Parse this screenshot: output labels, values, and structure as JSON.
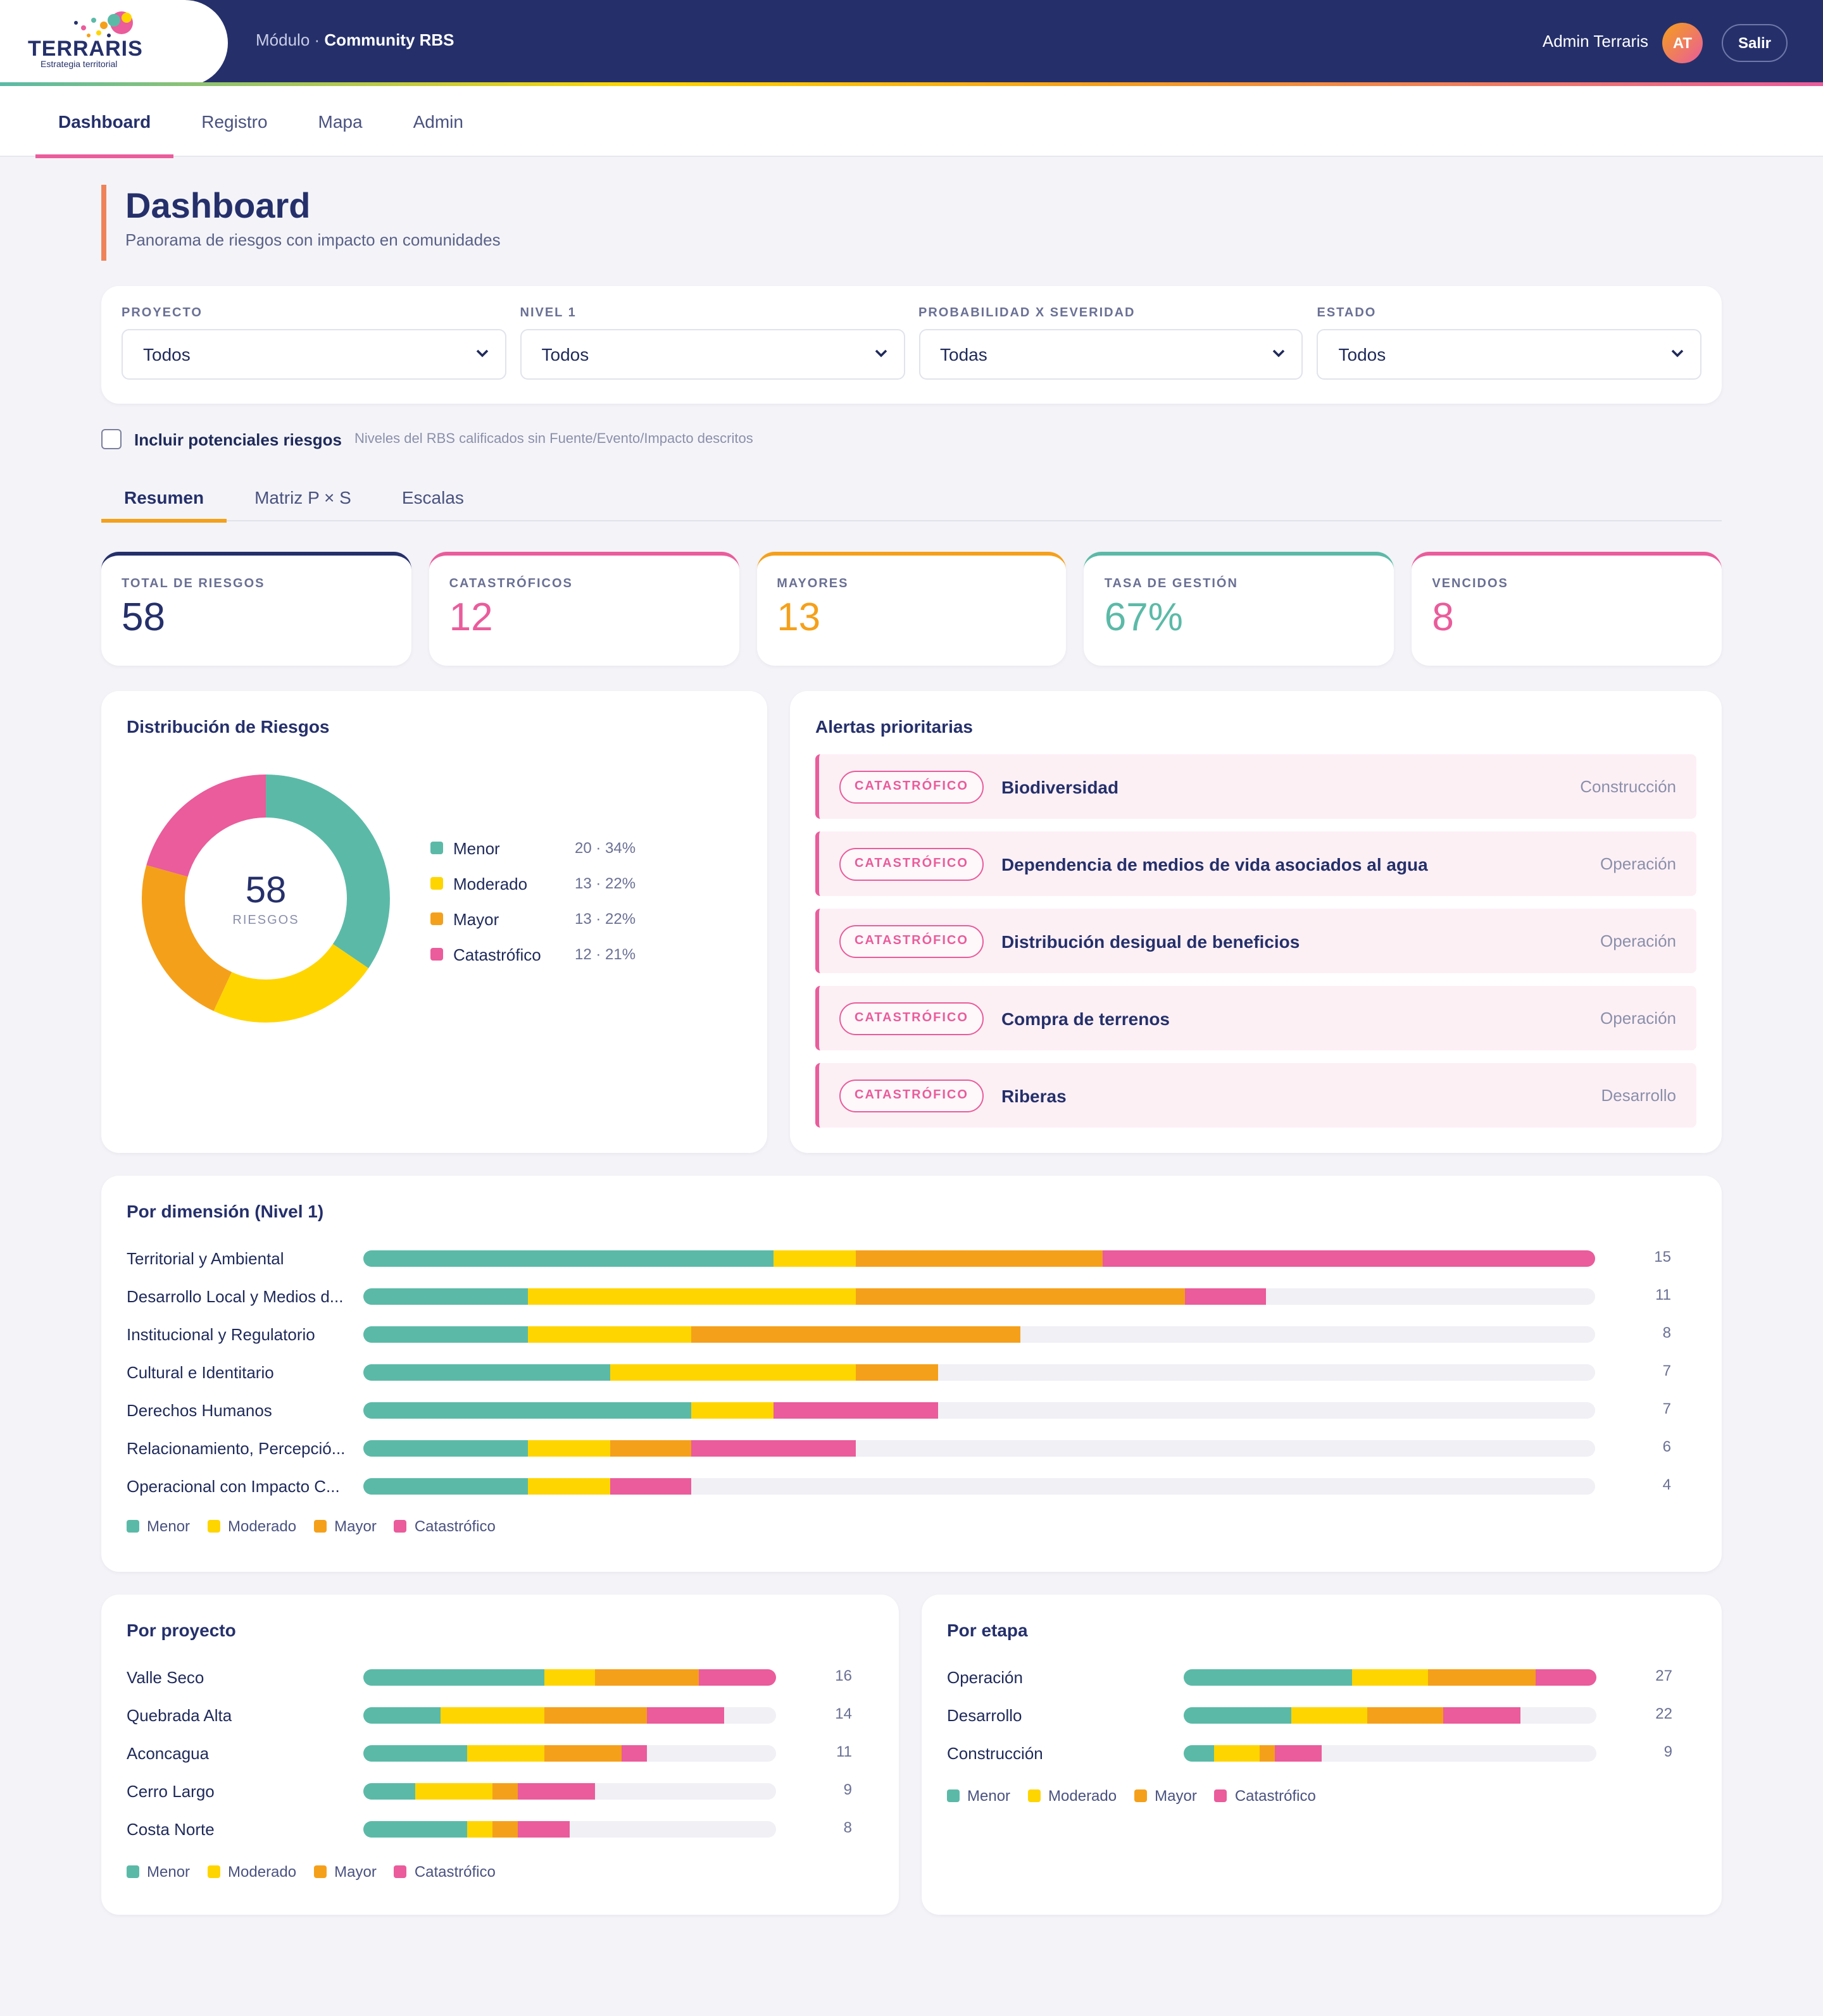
{
  "header": {
    "logo_text": "TERRARIS",
    "logo_sub": "Estrategia territorial",
    "module_prefix": "Módulo · ",
    "module_name": "Community RBS",
    "user_name": "Admin Terraris",
    "avatar_initials": "AT",
    "logout_label": "Salir"
  },
  "nav": [
    "Dashboard",
    "Registro",
    "Mapa",
    "Admin"
  ],
  "page": {
    "title": "Dashboard",
    "subtitle": "Panorama de riesgos con impacto en comunidades"
  },
  "filters": [
    {
      "label": "PROYECTO",
      "value": "Todos"
    },
    {
      "label": "NIVEL 1",
      "value": "Todos"
    },
    {
      "label": "PROBABILIDAD X SEVERIDAD",
      "value": "Todas"
    },
    {
      "label": "ESTADO",
      "value": "Todos"
    }
  ],
  "checkbox": {
    "label": "Incluir potenciales riesgos",
    "hint": "Niveles del RBS calificados sin Fuente/Evento/Impacto descritos",
    "checked": false
  },
  "subtabs": [
    "Resumen",
    "Matriz P × S",
    "Escalas"
  ],
  "colors": {
    "menor": "#5bbaa7",
    "moderado": "#ffd500",
    "mayor": "#f5a01a",
    "catastrofico": "#ea5c9b",
    "navy": "#25306b"
  },
  "kpis": [
    {
      "label": "TOTAL DE RIESGOS",
      "value": "58",
      "color": "#25306b"
    },
    {
      "label": "CATASTRÓFICOS",
      "value": "12",
      "color": "#ea5c9b"
    },
    {
      "label": "MAYORES",
      "value": "13",
      "color": "#f5a01a"
    },
    {
      "label": "TASA DE GESTIÓN",
      "value": "67%",
      "color": "#5bbaa7"
    },
    {
      "label": "VENCIDOS",
      "value": "8",
      "color": "#ea5c9b"
    }
  ],
  "distribution": {
    "title": "Distribución de Riesgos",
    "total": "58",
    "total_label": "RIESGOS",
    "items": [
      {
        "name": "Menor",
        "count": 20,
        "text": "20 · 34%"
      },
      {
        "name": "Moderado",
        "count": 13,
        "text": "13 · 22%"
      },
      {
        "name": "Mayor",
        "count": 13,
        "text": "13 · 22%"
      },
      {
        "name": "Catastrófico",
        "count": 12,
        "text": "12 · 21%"
      }
    ]
  },
  "alerts": {
    "title": "Alertas prioritarias",
    "items": [
      {
        "badge": "CATASTRÓFICO",
        "title": "Biodiversidad",
        "stage": "Construcción"
      },
      {
        "badge": "CATASTRÓFICO",
        "title": "Dependencia de medios de vida asociados al agua",
        "stage": "Operación"
      },
      {
        "badge": "CATASTRÓFICO",
        "title": "Distribución desigual de beneficios",
        "stage": "Operación"
      },
      {
        "badge": "CATASTRÓFICO",
        "title": "Compra de terrenos",
        "stage": "Operación"
      },
      {
        "badge": "CATASTRÓFICO",
        "title": "Riberas",
        "stage": "Desarrollo"
      }
    ]
  },
  "legend_labels": [
    "Menor",
    "Moderado",
    "Mayor",
    "Catastrófico"
  ],
  "chart_data": [
    {
      "type": "bar",
      "title": "Por dimensión (Nivel 1)",
      "stacked": true,
      "max": 15,
      "categories": [
        "Territorial y Ambiental",
        "Desarrollo Local y Medios d...",
        "Institucional y Regulatorio",
        "Cultural e Identitario",
        "Derechos Humanos",
        "Relacionamiento, Percepció...",
        "Operacional con Impacto C..."
      ],
      "totals": [
        15,
        11,
        8,
        7,
        7,
        6,
        4
      ],
      "series": [
        {
          "name": "Menor",
          "values": [
            5,
            2,
            2,
            3,
            4,
            2,
            2
          ]
        },
        {
          "name": "Moderado",
          "values": [
            1,
            4,
            2,
            3,
            1,
            1,
            1
          ]
        },
        {
          "name": "Mayor",
          "values": [
            3,
            4,
            4,
            1,
            0,
            1,
            0
          ]
        },
        {
          "name": "Catastrófico",
          "values": [
            6,
            1,
            0,
            0,
            2,
            2,
            1
          ]
        }
      ]
    },
    {
      "type": "bar",
      "title": "Por proyecto",
      "stacked": true,
      "max": 16,
      "categories": [
        "Valle Seco",
        "Quebrada Alta",
        "Aconcagua",
        "Cerro Largo",
        "Costa Norte"
      ],
      "totals": [
        16,
        14,
        11,
        9,
        8
      ],
      "series": [
        {
          "name": "Menor",
          "values": [
            7,
            3,
            4,
            2,
            4
          ]
        },
        {
          "name": "Moderado",
          "values": [
            2,
            4,
            3,
            3,
            1
          ]
        },
        {
          "name": "Mayor",
          "values": [
            4,
            4,
            3,
            1,
            1
          ]
        },
        {
          "name": "Catastrófico",
          "values": [
            3,
            3,
            1,
            3,
            2
          ]
        }
      ]
    },
    {
      "type": "bar",
      "title": "Por etapa",
      "stacked": true,
      "max": 27,
      "categories": [
        "Operación",
        "Desarrollo",
        "Construcción"
      ],
      "totals": [
        27,
        22,
        9
      ],
      "series": [
        {
          "name": "Menor",
          "values": [
            11,
            7,
            2
          ]
        },
        {
          "name": "Moderado",
          "values": [
            5,
            5,
            3
          ]
        },
        {
          "name": "Mayor",
          "values": [
            7,
            5,
            1
          ]
        },
        {
          "name": "Catastrófico",
          "values": [
            4,
            5,
            3
          ]
        }
      ]
    }
  ]
}
